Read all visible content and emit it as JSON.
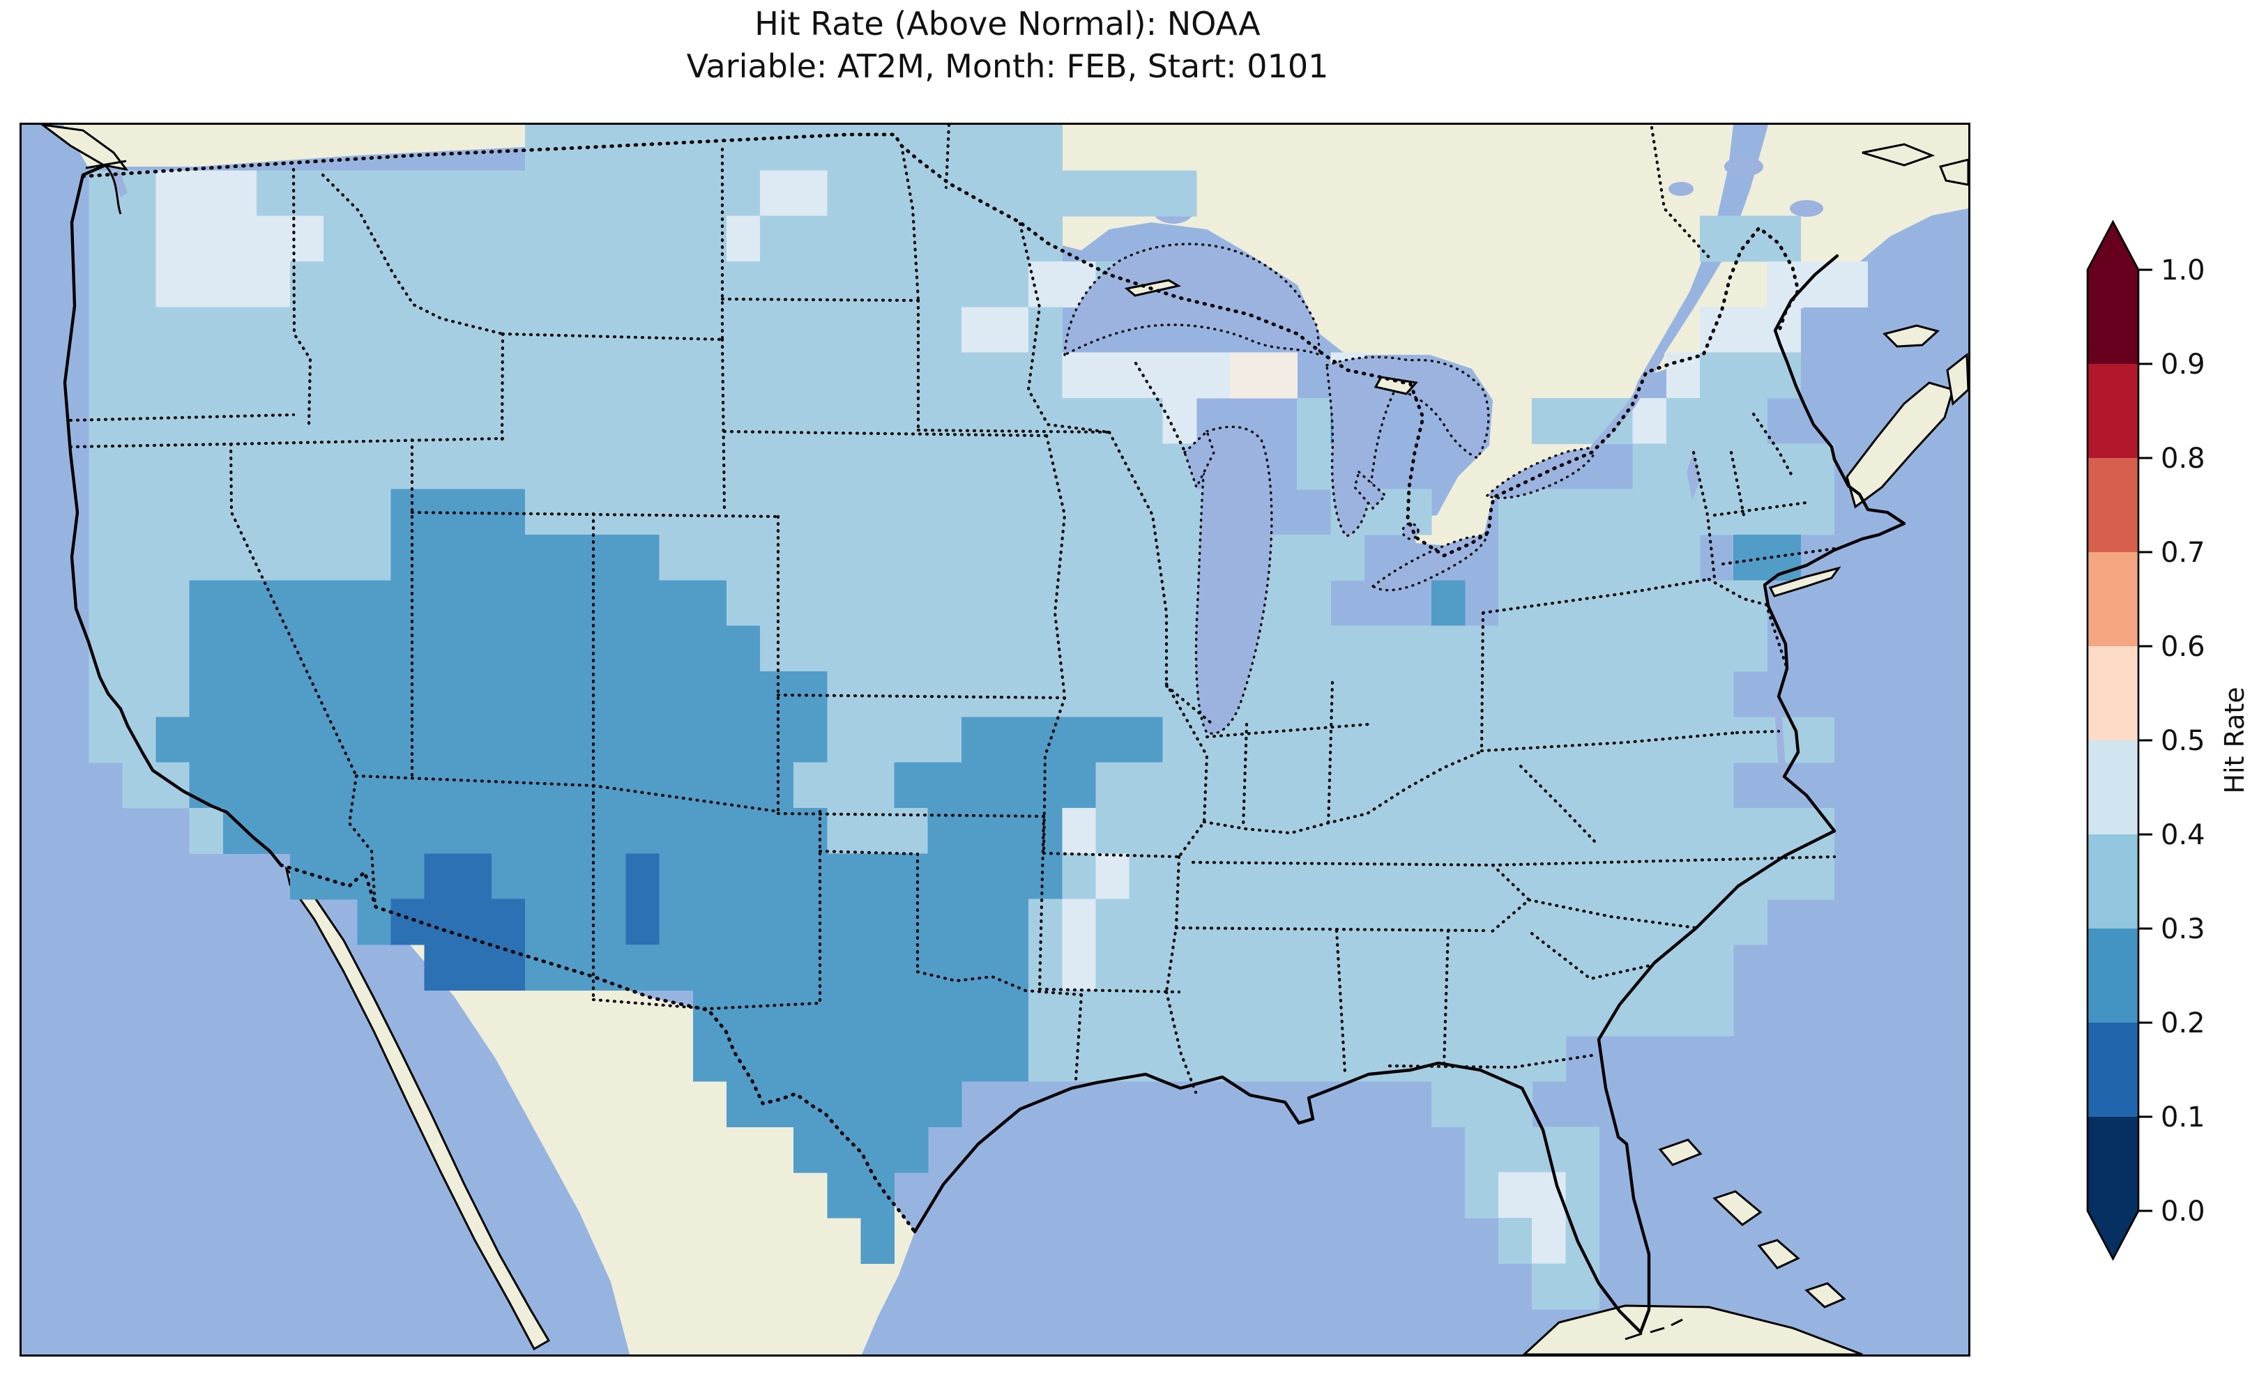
{
  "title": {
    "line1": "Hit Rate (Above Normal): NOAA",
    "line2": "Variable: AT2M, Month: FEB, Start: 0101"
  },
  "colorbar": {
    "label": "Hit Rate",
    "tick_labels": [
      "1.0",
      "0.9",
      "0.8",
      "0.7",
      "0.6",
      "0.5",
      "0.4",
      "0.3",
      "0.2",
      "0.1",
      "0.0"
    ],
    "segment_colors_top_to_bottom": [
      "#67001f",
      "#b2182b",
      "#d6604d",
      "#f4a582",
      "#fddbc7",
      "#d1e5f0",
      "#92c5de",
      "#4393c3",
      "#2166ac",
      "#053061"
    ],
    "over_arrow_color": "#67001f",
    "under_arrow_color": "#053061"
  },
  "map": {
    "ocean_color": "#97b4e1",
    "land_color": "#efeeda",
    "lake_color": "#9cb3e0",
    "coast_color": "#000000",
    "cell_colors": {
      "1": "#2b71b4",
      "2": "#529cc8",
      "3": "#a6cee3",
      "4": "#dde9f3",
      "5": "#f2ece5"
    }
  },
  "chart_data": {
    "type": "heatmap",
    "title": "Hit Rate (Above Normal): NOAA",
    "subtitle": "Variable: AT2M, Month: FEB, Start: 0101",
    "source_label": "NOAA",
    "variable": "AT2M",
    "month": "FEB",
    "start": "0101",
    "colorbar_label": "Hit Rate",
    "colorbar_range": [
      0.0,
      1.0
    ],
    "colorbar_tick_step": 0.1,
    "colormap": "RdBu_r, 10 discrete bins, arrow caps at both ends",
    "region": "Contiguous United States (view includes southern Canada, northern Mexico with Baja California, Gulf of Mexico, Great Lakes, western Atlantic with Cuba and Bahamas)",
    "value_summary": {
      "dominant_range": "0.3-0.4 over most of the CONUS",
      "range_0.2_0.3": "Great Basin, Southwest, Colorado/Wyoming Rockies, western and central Texas, Oklahoma, tongue into SE Kansas / SW Missouri, few coastal New England cells",
      "range_0.1_0.2": "pocket over southern Arizona / southwestern New Mexico plus one isolated New Mexico cell",
      "range_0.4_0.5": "eastern Washington-N Idaho, N Minnesota, around Lakes Superior and Michigan, northern Maine, Vermont cells, central Florida, lower Mississippi valley strip",
      "range_0.5_0.6": "a few near-white cells in upper Michigan and along the Arkansas strip"
    },
    "grid": {
      "cols": 58,
      "rows": 27,
      "legend": {
        ".": "no data",
        "1": "0.1-0.2",
        "2": "0.2-0.3",
        "3": "0.3-0.4",
        "4": "0.4-0.5",
        "5": "0.5-0.6"
      },
      "rows_data": [
        "...............3333333333333333...........................",
        "..334443333333333333334433333333333........................",
        "..33444443333333333334333333333...................333.....",
        "..3344443333333333333333333333443...................444.....",
        "..33333333333333333333333333443...................444.....",
        "..333333333333333333333333333334444455 4.........4333......",
        "..333333333333333333333333333333334...32...  3334333......",
        "..333333333333333333333333333333333...33....... 333333.....",
        "..3333333332222333333333333333333333...333..3333333333.....",
        "..33333333322222222333333333333333333333....333333 22......",
        "..3332222222222222222333333333333333333...2 33333333......",
        "..33322222222222222222333333333333333333333333333333......",
        "..3332222222222222222222333333333333333333333333333......",
        "..3322222222222222222222333322222233333333333333333333......",
        "...332222222222222222223332222223333333333333333333......",
        ".....3222222222222222222333222243333333333333333333333......",
        "........2222112222122222222222234333333333333333333333......",
        "..........211112221222222222223433333333333333333333......",
        "............111222222222222222343333333333333333333.......",
        "....................2222222222333333333333333333333........",
        "....................22222222223333333333333333..............",
        ".....................2222222..............333.............",
        ".......................2222................3333...........",
        "........................22.................3443...........",
        ".........................2..................343...........",
        ".............................................33...........",
        ".........................................................."
      ]
    }
  }
}
